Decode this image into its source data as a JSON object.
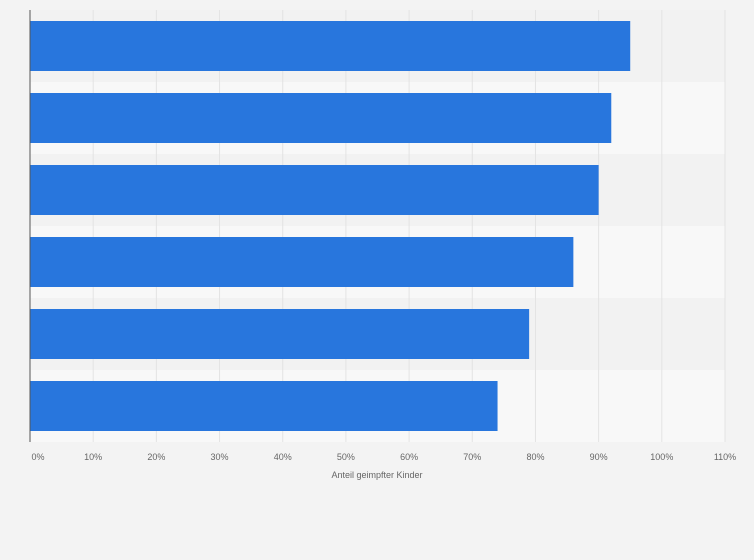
{
  "chart_data": {
    "type": "bar",
    "orientation": "horizontal",
    "categories": [
      "",
      "",
      "",
      "",
      "",
      ""
    ],
    "values": [
      95,
      92,
      90,
      86,
      79,
      74
    ],
    "xlabel": "Anteil geimpfter Kinder",
    "ylabel": "",
    "xlim": [
      0,
      110
    ],
    "xticks": [
      "0%",
      "10%",
      "20%",
      "30%",
      "40%",
      "50%",
      "60%",
      "70%",
      "80%",
      "90%",
      "100%",
      "110%"
    ],
    "grid": true,
    "legend": "none",
    "colors": {
      "bar": "#2876dd",
      "band_dark": "#f2f2f2",
      "band_light": "#f8f8f8",
      "grid": "#e3e3e3",
      "axis": "#555555",
      "tick_label": "#666666",
      "background": "#f3f3f3"
    }
  }
}
